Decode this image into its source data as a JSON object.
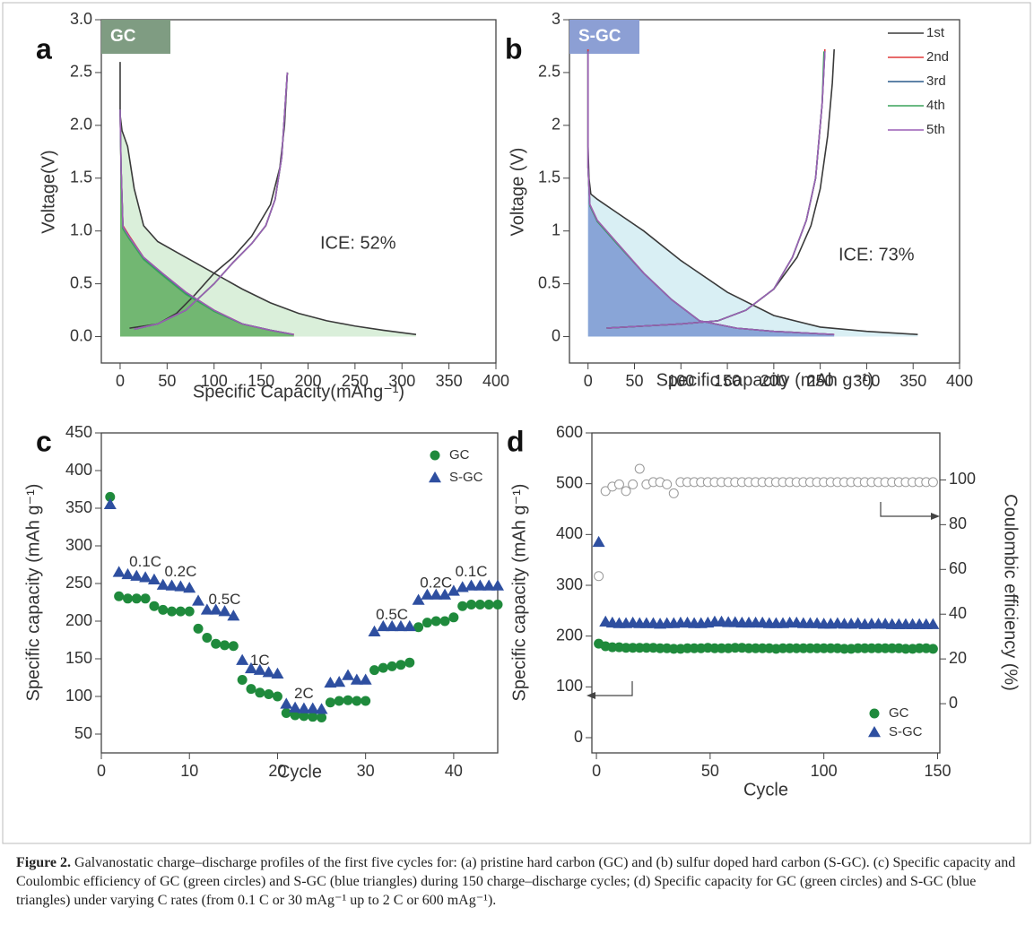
{
  "chart_data": [
    {
      "type": "line",
      "panel": "a",
      "label": "GC",
      "label_color": "#7f9c82",
      "annotation": "ICE: 52%",
      "xlabel": "Specific Capacity(mAhg⁻¹)",
      "ylabel": "Voltage(V)",
      "xlim": [
        -20,
        400
      ],
      "ylim": [
        -0.25,
        3.0
      ],
      "xticks": [
        0,
        50,
        100,
        150,
        200,
        250,
        300,
        350,
        400
      ],
      "yticks": [
        {
          "value": 0,
          "label": "0.0"
        },
        0.5,
        {
          "value": 1,
          "label": "1.0"
        },
        1.5,
        {
          "value": 2,
          "label": "2.0"
        },
        2.5,
        {
          "value": 3,
          "label": "3.0"
        }
      ],
      "series": [
        {
          "color": "#3a3a3a",
          "fill": "rgba(150,210,150,0.35)",
          "x": [
            0,
            0,
            2,
            8,
            15,
            25,
            40,
            60,
            80,
            100,
            130,
            160,
            190,
            220,
            250,
            280,
            315,
            null,
            10,
            40,
            60,
            80,
            100,
            120,
            140,
            160,
            170,
            175,
            178
          ],
          "values": [
            2.6,
            2.1,
            1.95,
            1.8,
            1.4,
            1.05,
            0.9,
            0.8,
            0.7,
            0.6,
            0.45,
            0.32,
            0.22,
            0.15,
            0.1,
            0.06,
            0.02,
            null,
            0.08,
            0.12,
            0.22,
            0.4,
            0.6,
            0.75,
            0.95,
            1.25,
            1.6,
            2.0,
            2.5
          ]
        },
        {
          "color": "#e03a3a",
          "fill": "rgba(70,160,70,0.7)",
          "x": [
            0,
            1,
            3,
            10,
            25,
            45,
            70,
            100,
            130,
            160,
            185,
            null,
            15,
            40,
            70,
            100,
            120,
            140,
            155,
            165,
            172,
            178
          ],
          "values": [
            2.15,
            1.6,
            1.05,
            0.95,
            0.75,
            0.6,
            0.42,
            0.25,
            0.12,
            0.06,
            0.02,
            null,
            0.07,
            0.12,
            0.25,
            0.5,
            0.7,
            0.88,
            1.05,
            1.3,
            1.7,
            2.5
          ]
        },
        {
          "color": "#2a5a8c",
          "x": [
            0,
            1,
            3,
            10,
            25,
            45,
            70,
            100,
            130,
            160,
            184,
            null,
            15,
            40,
            70,
            100,
            120,
            140,
            155,
            165,
            172,
            178
          ],
          "values": [
            2.15,
            1.6,
            1.03,
            0.93,
            0.74,
            0.59,
            0.41,
            0.24,
            0.12,
            0.06,
            0.02,
            null,
            0.07,
            0.12,
            0.25,
            0.5,
            0.7,
            0.88,
            1.05,
            1.3,
            1.7,
            2.5
          ]
        },
        {
          "color": "#3aa35a",
          "x": [
            0,
            1,
            3,
            10,
            25,
            45,
            70,
            100,
            130,
            160,
            184,
            null,
            15,
            40,
            70,
            100,
            120,
            140,
            155,
            165,
            172,
            178
          ],
          "values": [
            2.15,
            1.6,
            1.02,
            0.92,
            0.73,
            0.58,
            0.4,
            0.24,
            0.12,
            0.06,
            0.02,
            null,
            0.07,
            0.12,
            0.25,
            0.5,
            0.7,
            0.88,
            1.05,
            1.3,
            1.7,
            2.5
          ]
        },
        {
          "color": "#9a5fb5",
          "x": [
            0,
            1,
            3,
            10,
            25,
            45,
            70,
            100,
            130,
            160,
            185,
            null,
            15,
            40,
            70,
            100,
            120,
            140,
            155,
            165,
            172,
            178
          ],
          "values": [
            2.15,
            1.6,
            1.04,
            0.94,
            0.75,
            0.6,
            0.42,
            0.25,
            0.12,
            0.06,
            0.02,
            null,
            0.07,
            0.12,
            0.25,
            0.5,
            0.7,
            0.88,
            1.05,
            1.3,
            1.7,
            2.5
          ]
        }
      ]
    },
    {
      "type": "line",
      "panel": "b",
      "label": "S-GC",
      "label_color": "#8c9fd4",
      "annotation": "ICE: 73%",
      "xlabel": "Specific capacity (mAh g⁻¹)",
      "ylabel": "Voltage (V)",
      "xlim": [
        -20,
        400
      ],
      "ylim": [
        -0.25,
        3.0
      ],
      "xticks": [
        0,
        50,
        100,
        150,
        200,
        250,
        300,
        350,
        400
      ],
      "yticks": [
        0,
        0.5,
        1,
        1.5,
        2,
        2.5,
        3
      ],
      "series": [
        {
          "name": "1st",
          "color": "#3a3a3a",
          "fill": "rgba(170,220,230,0.45)",
          "x": [
            0,
            0,
            1,
            3,
            10,
            30,
            60,
            100,
            150,
            200,
            250,
            300,
            355,
            null,
            20,
            60,
            100,
            140,
            170,
            200,
            225,
            240,
            250,
            258,
            263,
            265
          ],
          "values": [
            2.72,
            1.8,
            1.5,
            1.35,
            1.3,
            1.18,
            1.0,
            0.72,
            0.42,
            0.2,
            0.09,
            0.05,
            0.02,
            null,
            0.08,
            0.1,
            0.12,
            0.15,
            0.25,
            0.45,
            0.75,
            1.05,
            1.4,
            1.9,
            2.4,
            2.72
          ]
        },
        {
          "name": "2nd",
          "color": "#e03a3a",
          "fill": "rgba(110,140,205,0.75)",
          "x": [
            0,
            0,
            2,
            10,
            30,
            60,
            90,
            120,
            160,
            200,
            265,
            null,
            20,
            60,
            100,
            140,
            170,
            200,
            220,
            235,
            245,
            252,
            255
          ],
          "values": [
            2.72,
            1.6,
            1.25,
            1.1,
            0.9,
            0.6,
            0.35,
            0.15,
            0.08,
            0.05,
            0.02,
            null,
            0.08,
            0.1,
            0.12,
            0.15,
            0.25,
            0.45,
            0.75,
            1.1,
            1.5,
            2.2,
            2.72
          ]
        },
        {
          "name": "3rd",
          "color": "#2a5a8c",
          "x": [
            0,
            0,
            2,
            10,
            30,
            60,
            90,
            120,
            160,
            200,
            264,
            null,
            20,
            60,
            100,
            140,
            170,
            200,
            220,
            235,
            245,
            252,
            255
          ],
          "values": [
            2.7,
            1.6,
            1.24,
            1.09,
            0.89,
            0.6,
            0.35,
            0.15,
            0.08,
            0.05,
            0.02,
            null,
            0.08,
            0.1,
            0.12,
            0.15,
            0.25,
            0.45,
            0.75,
            1.1,
            1.5,
            2.2,
            2.7
          ]
        },
        {
          "name": "4th",
          "color": "#3aa35a",
          "x": [
            0,
            0,
            2,
            10,
            30,
            60,
            90,
            120,
            160,
            200,
            264,
            null,
            20,
            60,
            100,
            140,
            170,
            200,
            220,
            235,
            245,
            252,
            254
          ],
          "values": [
            2.7,
            1.6,
            1.24,
            1.09,
            0.89,
            0.6,
            0.35,
            0.15,
            0.08,
            0.05,
            0.02,
            null,
            0.08,
            0.1,
            0.12,
            0.15,
            0.25,
            0.45,
            0.75,
            1.1,
            1.5,
            2.2,
            2.7
          ]
        },
        {
          "name": "5th",
          "color": "#9a5fb5",
          "x": [
            0,
            0,
            2,
            10,
            30,
            60,
            90,
            120,
            160,
            200,
            265,
            null,
            20,
            60,
            100,
            140,
            170,
            200,
            220,
            235,
            245,
            252,
            255
          ],
          "values": [
            2.7,
            1.6,
            1.25,
            1.1,
            0.9,
            0.6,
            0.35,
            0.15,
            0.08,
            0.05,
            0.02,
            null,
            0.08,
            0.1,
            0.12,
            0.15,
            0.25,
            0.45,
            0.75,
            1.1,
            1.5,
            2.2,
            2.7
          ]
        }
      ]
    },
    {
      "type": "scatter",
      "panel": "c",
      "xlabel": "Cycle",
      "ylabel": "Specific capacity (mAh g⁻¹)",
      "xlim": [
        0,
        45
      ],
      "ylim": [
        25,
        450
      ],
      "xticks": [
        0,
        10,
        20,
        30,
        40
      ],
      "yticks": [
        50,
        100,
        150,
        200,
        250,
        300,
        350,
        400,
        450
      ],
      "annotations": [
        "0.1C",
        "0.2C",
        "0.5C",
        "1C",
        "2C",
        "0.5C",
        "0.2C",
        "0.1C"
      ],
      "x": [
        1,
        2,
        3,
        4,
        5,
        6,
        7,
        8,
        9,
        10,
        11,
        12,
        13,
        14,
        15,
        16,
        17,
        18,
        19,
        20,
        21,
        22,
        23,
        24,
        25,
        26,
        27,
        28,
        29,
        30,
        31,
        32,
        33,
        34,
        35,
        36,
        37,
        38,
        39,
        40,
        41,
        42,
        43,
        44,
        45
      ],
      "series": [
        {
          "name": "GC",
          "color": "#1f8a3c",
          "marker": "circle",
          "values": [
            365,
            233,
            230,
            230,
            230,
            220,
            215,
            213,
            213,
            213,
            190,
            178,
            170,
            168,
            167,
            122,
            110,
            105,
            103,
            100,
            78,
            75,
            74,
            73,
            72,
            92,
            94,
            95,
            94,
            94,
            135,
            138,
            140,
            142,
            145,
            192,
            198,
            200,
            200,
            205,
            220,
            222,
            222,
            222,
            222
          ]
        },
        {
          "name": "S-GC",
          "color": "#2e4fa0",
          "marker": "triangle",
          "values": [
            355,
            265,
            262,
            260,
            258,
            255,
            248,
            247,
            246,
            244,
            227,
            215,
            215,
            213,
            207,
            148,
            137,
            135,
            132,
            130,
            90,
            85,
            84,
            84,
            83,
            118,
            119,
            128,
            122,
            122,
            186,
            193,
            193,
            193,
            193,
            228,
            235,
            235,
            235,
            240,
            245,
            247,
            247,
            247,
            247
          ]
        }
      ]
    },
    {
      "type": "scatter",
      "panel": "d",
      "xlabel": "Cycle",
      "ylabel": "Specific capacity (mAh g⁻¹)",
      "y2label": "Coulombic efficiency (%)",
      "xlim": [
        -2,
        151
      ],
      "ylim": [
        -30,
        600
      ],
      "y2lim": [
        -22,
        121
      ],
      "xticks": [
        0,
        50,
        100,
        150
      ],
      "yticks": [
        0,
        100,
        200,
        300,
        400,
        500,
        600
      ],
      "y2ticks": [
        0,
        20,
        40,
        60,
        80,
        100
      ],
      "x": [
        1,
        4,
        7,
        10,
        13,
        16,
        19,
        22,
        25,
        28,
        31,
        34,
        37,
        40,
        43,
        46,
        49,
        52,
        55,
        58,
        61,
        64,
        67,
        70,
        73,
        76,
        79,
        82,
        85,
        88,
        91,
        94,
        97,
        100,
        103,
        106,
        109,
        112,
        115,
        118,
        121,
        124,
        127,
        130,
        133,
        136,
        139,
        142,
        145,
        148
      ],
      "series": [
        {
          "color": "#999999",
          "marker": "open-circle",
          "axis": "y2",
          "values": [
            57,
            95,
            97,
            98,
            95,
            98,
            105,
            98,
            99,
            99,
            98,
            94,
            99,
            99,
            99,
            99,
            99,
            99,
            99,
            99,
            99,
            99,
            99,
            99,
            99,
            99,
            99,
            99,
            99,
            99,
            99,
            99,
            99,
            99,
            99,
            99,
            99,
            99,
            99,
            99,
            99,
            99,
            99,
            99,
            99,
            99,
            99,
            99,
            99,
            99
          ]
        },
        {
          "name": "GC",
          "color": "#1f8a3c",
          "marker": "circle",
          "values": [
            185,
            180,
            178,
            178,
            177,
            177,
            177,
            177,
            177,
            176,
            176,
            175,
            175,
            176,
            176,
            176,
            177,
            176,
            176,
            176,
            177,
            177,
            176,
            176,
            176,
            176,
            175,
            176,
            176,
            176,
            176,
            176,
            176,
            176,
            176,
            176,
            175,
            175,
            176,
            176,
            176,
            176,
            176,
            176,
            176,
            175,
            175,
            176,
            176,
            175
          ]
        },
        {
          "name": "S-GC",
          "color": "#2e4fa0",
          "marker": "triangle",
          "values": [
            385,
            228,
            226,
            225,
            225,
            226,
            225,
            225,
            225,
            224,
            225,
            225,
            226,
            226,
            225,
            225,
            226,
            228,
            228,
            227,
            227,
            226,
            226,
            226,
            226,
            225,
            225,
            225,
            226,
            226,
            225,
            225,
            225,
            224,
            224,
            225,
            224,
            224,
            225,
            223,
            224,
            224,
            224,
            223,
            223,
            223,
            223,
            223,
            223,
            223
          ]
        }
      ]
    }
  ],
  "caption": {
    "label": "Figure 2.",
    "text": "Galvanostatic charge–discharge profiles of the first five cycles for: (a) pristine hard carbon (GC) and (b) sulfur doped hard carbon (S-GC). (c) Specific capacity and Coulombic efficiency of GC (green circles) and S-GC (blue triangles) during 150 charge–discharge cycles; (d) Specific capacity for GC (green circles) and S-GC (blue triangles) under varying C rates (from 0.1 C or 30 mAg⁻¹ up to 2 C or 600 mAg⁻¹)."
  }
}
